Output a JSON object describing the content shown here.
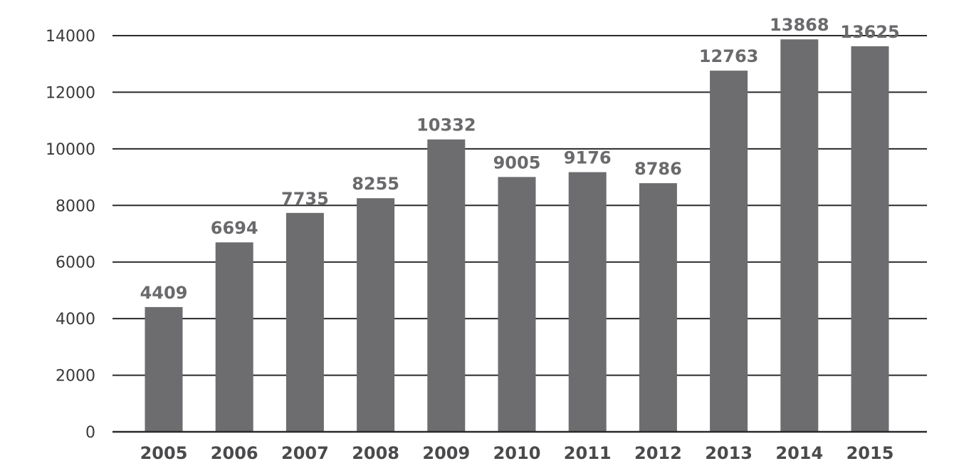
{
  "chart_data": {
    "type": "bar",
    "title": "",
    "xlabel": "",
    "ylabel": "",
    "categories": [
      "2005",
      "2006",
      "2007",
      "2008",
      "2009",
      "2010",
      "2011",
      "2012",
      "2013",
      "2014",
      "2015"
    ],
    "values": [
      4409,
      6694,
      7735,
      8255,
      10332,
      9005,
      9176,
      8786,
      12763,
      13868,
      13625
    ],
    "y_ticks": [
      "0",
      "2000",
      "4000",
      "6000",
      "8000",
      "10000",
      "12000",
      "14000"
    ],
    "ylim": [
      0,
      14000
    ],
    "grid": true,
    "legend": "none",
    "colors": {
      "bar": "#6d6d70",
      "grid": "#2a2a2a",
      "tick_text": "#3a3a3a",
      "data_label": "#6a6a6d"
    }
  }
}
